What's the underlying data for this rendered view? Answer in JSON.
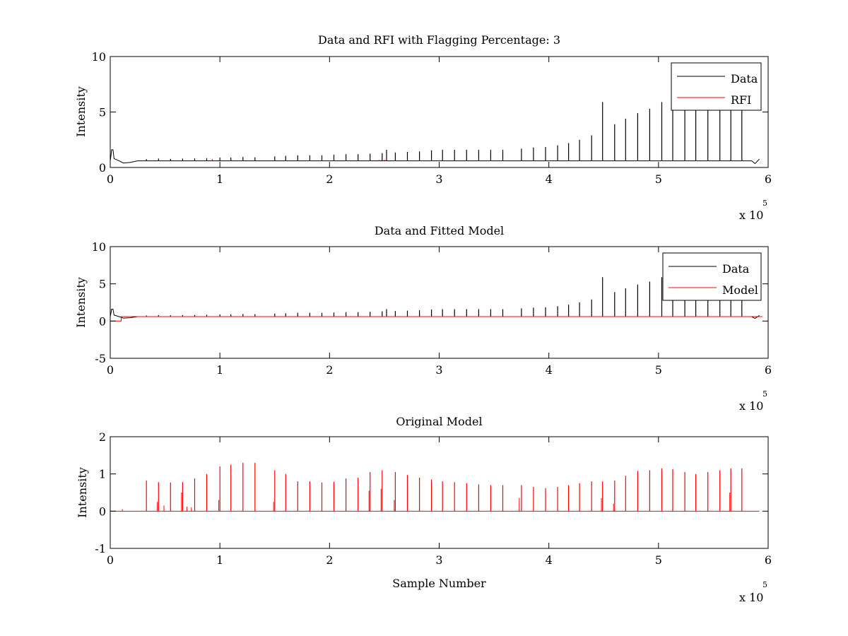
{
  "figure": {
    "background": "#ffffff",
    "colors": {
      "data": "#000000",
      "rfi": "#ff0000",
      "model": "#ff0000",
      "axes": "#000000"
    }
  },
  "chart_data": [
    {
      "type": "line",
      "title": "Data and RFI with Flagging Percentage: 3",
      "xlabel": "",
      "ylabel": "Intensity",
      "xlim": [
        0,
        6
      ],
      "ylim": [
        0,
        10
      ],
      "xticks": [
        "0",
        "1",
        "2",
        "3",
        "4",
        "5",
        "6"
      ],
      "yticks": [
        "0",
        "5",
        "10"
      ],
      "x_exponent": {
        "prefix": "x 10",
        "power": "5"
      },
      "legend": {
        "position": "top-right",
        "entries": [
          "Data",
          "RFI"
        ]
      },
      "grid": false,
      "baseline": 0.6,
      "start_bump": 1.6,
      "series": [
        {
          "name": "Data",
          "color": "#000000",
          "spike_x": [
            0.33,
            0.44,
            0.55,
            0.66,
            0.77,
            0.88,
            1.0,
            1.1,
            1.21,
            1.32,
            1.5,
            1.6,
            1.71,
            1.82,
            1.93,
            2.04,
            2.15,
            2.26,
            2.37,
            2.48,
            2.52,
            2.6,
            2.71,
            2.82,
            2.93,
            3.03,
            3.14,
            3.25,
            3.36,
            3.47,
            3.58,
            3.75,
            3.86,
            3.97,
            4.08,
            4.18,
            4.28,
            4.39,
            4.49,
            4.6,
            4.7,
            4.81,
            4.92,
            5.03,
            5.13,
            5.24,
            5.34,
            5.45,
            5.56,
            5.66,
            5.76
          ],
          "spike_y": [
            0.75,
            0.8,
            0.78,
            0.8,
            0.82,
            0.85,
            0.9,
            0.9,
            0.95,
            0.92,
            1.0,
            1.05,
            1.1,
            1.1,
            1.1,
            1.15,
            1.2,
            1.2,
            1.25,
            1.3,
            1.6,
            1.35,
            1.4,
            1.45,
            1.55,
            1.6,
            1.6,
            1.6,
            1.6,
            1.6,
            1.6,
            1.7,
            1.8,
            1.85,
            2.0,
            2.2,
            2.5,
            2.9,
            5.9,
            3.9,
            4.4,
            4.9,
            5.3,
            5.9,
            5.7,
            5.6,
            5.6,
            5.6,
            5.5,
            5.5,
            5.5
          ]
        },
        {
          "name": "RFI",
          "color": "#ff0000",
          "spike_x": [
            0.93,
            2.4,
            2.45,
            2.5
          ],
          "spike_y": [
            0.75,
            0.65,
            0.68,
            0.7
          ]
        }
      ]
    },
    {
      "type": "line",
      "title": "Data and Fitted Model",
      "xlabel": "",
      "ylabel": "Intensity",
      "xlim": [
        0,
        6
      ],
      "ylim": [
        -5,
        10
      ],
      "xticks": [
        "0",
        "1",
        "2",
        "3",
        "4",
        "5",
        "6"
      ],
      "yticks": [
        "-5",
        "0",
        "5",
        "10"
      ],
      "x_exponent": {
        "prefix": "x 10",
        "power": "5"
      },
      "legend": {
        "position": "top-right",
        "entries": [
          "Data",
          "Model"
        ]
      },
      "grid": false,
      "baseline": 0.6,
      "start_bump": 1.6,
      "series": [
        {
          "name": "Data",
          "color": "#000000",
          "spike_x": [
            0.33,
            0.44,
            0.55,
            0.66,
            0.77,
            0.88,
            1.0,
            1.1,
            1.21,
            1.32,
            1.5,
            1.6,
            1.71,
            1.82,
            1.93,
            2.04,
            2.15,
            2.26,
            2.37,
            2.48,
            2.52,
            2.6,
            2.71,
            2.82,
            2.93,
            3.03,
            3.14,
            3.25,
            3.36,
            3.47,
            3.58,
            3.75,
            3.86,
            3.97,
            4.08,
            4.18,
            4.28,
            4.39,
            4.49,
            4.6,
            4.7,
            4.81,
            4.92,
            5.03,
            5.13,
            5.24,
            5.34,
            5.45,
            5.56,
            5.66,
            5.76
          ],
          "spike_y": [
            0.75,
            0.8,
            0.78,
            0.8,
            0.82,
            0.85,
            0.9,
            0.9,
            0.95,
            0.92,
            1.0,
            1.05,
            1.1,
            1.1,
            1.1,
            1.15,
            1.2,
            1.2,
            1.25,
            1.3,
            1.6,
            1.35,
            1.4,
            1.45,
            1.55,
            1.6,
            1.6,
            1.6,
            1.6,
            1.6,
            1.6,
            1.7,
            1.8,
            1.85,
            2.0,
            2.2,
            2.5,
            2.9,
            5.9,
            3.9,
            4.4,
            4.9,
            5.3,
            5.9,
            5.7,
            5.6,
            5.6,
            5.6,
            5.5,
            5.5,
            5.5
          ]
        },
        {
          "name": "Model",
          "color": "#ff0000",
          "level": 0.6,
          "step": {
            "x_end": 0.1,
            "y": 0.0
          }
        }
      ]
    },
    {
      "type": "line",
      "title": "Original Model",
      "xlabel": "Sample Number",
      "ylabel": "Intensity",
      "xlim": [
        0,
        6
      ],
      "ylim": [
        -1,
        2
      ],
      "xticks": [
        "0",
        "1",
        "2",
        "3",
        "4",
        "5",
        "6"
      ],
      "yticks": [
        "-1",
        "0",
        "1",
        "2"
      ],
      "x_exponent": {
        "prefix": "x 10",
        "power": "5"
      },
      "grid": false,
      "series": [
        {
          "name": "",
          "color": "#ff0000",
          "spike_x": [
            0.33,
            0.44,
            0.55,
            0.66,
            0.77,
            0.88,
            1.0,
            1.1,
            1.21,
            1.32,
            1.5,
            1.6,
            1.71,
            1.82,
            1.93,
            2.04,
            2.15,
            2.26,
            2.37,
            2.48,
            2.6,
            2.71,
            2.82,
            2.93,
            3.03,
            3.14,
            3.25,
            3.36,
            3.47,
            3.58,
            3.75,
            3.86,
            3.97,
            4.08,
            4.18,
            4.28,
            4.39,
            4.49,
            4.6,
            4.7,
            4.81,
            4.92,
            5.03,
            5.13,
            5.24,
            5.34,
            5.45,
            5.56,
            5.66,
            5.76
          ],
          "spike_y": [
            0.82,
            0.78,
            0.77,
            0.78,
            0.88,
            1.0,
            1.2,
            1.25,
            1.3,
            1.3,
            1.1,
            1.0,
            0.8,
            0.8,
            0.77,
            0.79,
            0.88,
            0.9,
            1.05,
            1.1,
            1.05,
            0.97,
            0.9,
            0.85,
            0.8,
            0.78,
            0.75,
            0.72,
            0.7,
            0.7,
            0.7,
            0.65,
            0.62,
            0.65,
            0.7,
            0.75,
            0.8,
            0.8,
            0.82,
            0.95,
            1.08,
            1.1,
            1.15,
            1.13,
            1.05,
            1.0,
            1.05,
            1.1,
            1.15,
            1.15
          ],
          "minor_x": [
            0.11,
            0.43,
            0.49,
            0.65,
            0.7,
            0.74,
            0.99,
            1.49,
            2.36,
            2.47,
            2.59,
            3.73,
            4.48,
            4.59,
            5.65
          ],
          "minor_y": [
            0.05,
            0.25,
            0.15,
            0.5,
            0.12,
            0.1,
            0.3,
            0.25,
            0.55,
            0.6,
            0.3,
            0.35,
            0.35,
            0.2,
            0.5
          ]
        }
      ]
    }
  ]
}
